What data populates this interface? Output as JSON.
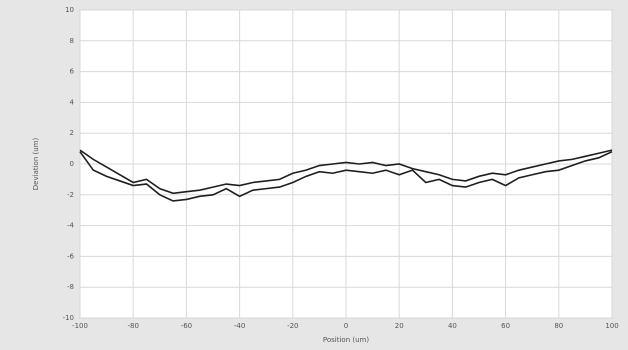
{
  "chart_data": {
    "type": "line",
    "xlabel": "Position (um)",
    "ylabel": "Deviation (um)",
    "x": [
      -100,
      -95,
      -90,
      -85,
      -80,
      -75,
      -70,
      -65,
      -60,
      -55,
      -50,
      -45,
      -40,
      -35,
      -30,
      -25,
      -20,
      -15,
      -10,
      -5,
      0,
      5,
      10,
      15,
      20,
      25,
      30,
      35,
      40,
      45,
      50,
      55,
      60,
      65,
      70,
      75,
      80,
      85,
      90,
      95,
      100
    ],
    "series": [
      {
        "color": "#1e1e1e",
        "values": [
          0.9,
          0.3,
          -0.2,
          -0.7,
          -1.2,
          -1.0,
          -1.6,
          -1.9,
          -1.8,
          -1.7,
          -1.5,
          -1.3,
          -1.4,
          -1.2,
          -1.1,
          -1.0,
          -0.6,
          -0.4,
          -0.1,
          0.0,
          0.1,
          0.0,
          0.1,
          -0.1,
          0.0,
          -0.3,
          -0.5,
          -0.7,
          -1.0,
          -1.1,
          -0.8,
          -0.6,
          -0.7,
          -0.4,
          -0.2,
          0.0,
          0.2,
          0.3,
          0.5,
          0.7,
          0.9
        ]
      },
      {
        "color": "#1e1e1e",
        "values": [
          0.8,
          -0.4,
          -0.8,
          -1.1,
          -1.4,
          -1.3,
          -2.0,
          -2.4,
          -2.3,
          -2.1,
          -2.0,
          -1.6,
          -2.1,
          -1.7,
          -1.6,
          -1.5,
          -1.2,
          -0.8,
          -0.5,
          -0.6,
          -0.4,
          -0.5,
          -0.6,
          -0.4,
          -0.7,
          -0.4,
          -1.2,
          -1.0,
          -1.4,
          -1.5,
          -1.2,
          -1.0,
          -1.4,
          -0.9,
          -0.7,
          -0.5,
          -0.4,
          -0.1,
          0.2,
          0.4,
          0.8
        ]
      }
    ],
    "xlim": [
      -100,
      100
    ],
    "xticks": [
      -100,
      -80,
      -60,
      -40,
      -20,
      0,
      20,
      40,
      60,
      80,
      100
    ],
    "ylim": [
      -10,
      10
    ],
    "yticks": [
      -10,
      -8,
      -6,
      -4,
      -2,
      0,
      2,
      4,
      6,
      8,
      10
    ],
    "grid": true
  }
}
